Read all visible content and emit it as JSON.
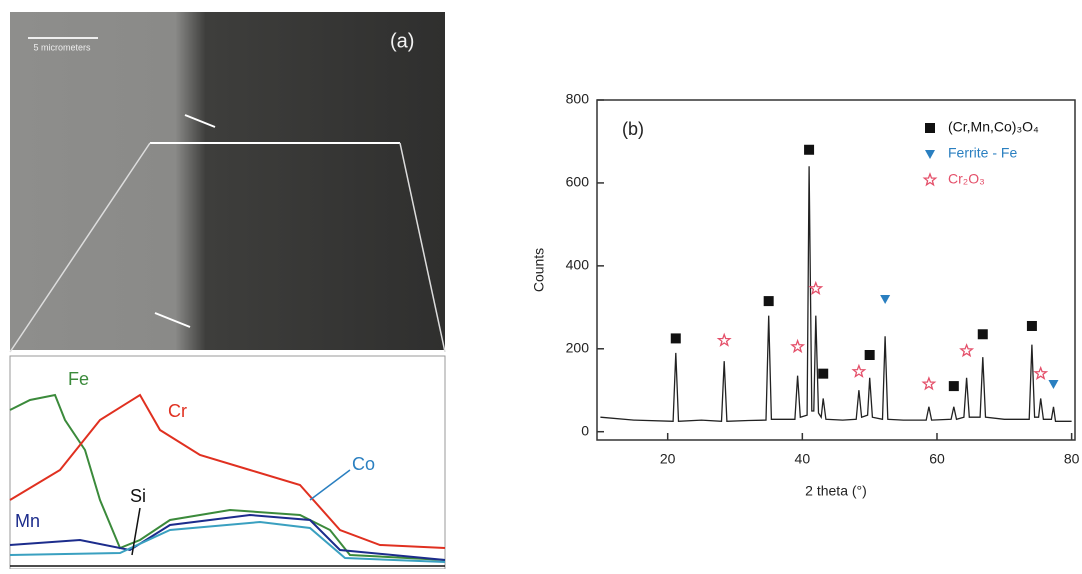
{
  "panel_a": {
    "label": "(a)",
    "scale_bar": "5 micrometers",
    "elements": [
      "Fe",
      "Cr",
      "Co",
      "Mn",
      "Si"
    ]
  },
  "chart_data": {
    "type": "line",
    "annotation": "(b)",
    "xlabel": "2 theta (°)",
    "ylabel": "Counts",
    "x": [
      10,
      15,
      20.8,
      21.2,
      21.6,
      25,
      28.0,
      28.4,
      28.8,
      32,
      34.6,
      35.0,
      35.4,
      38.9,
      39.3,
      39.7,
      40.7,
      41.0,
      41.4,
      41.7,
      42.0,
      42.4,
      42.8,
      43.1,
      43.5,
      46,
      48.0,
      48.4,
      48.8,
      49.7,
      50.0,
      50.4,
      51.9,
      52.3,
      52.7,
      55,
      58.4,
      58.8,
      59.2,
      62.1,
      62.5,
      62.9,
      64.0,
      64.4,
      64.8,
      66.4,
      66.8,
      67.2,
      70,
      73.7,
      74.1,
      74.5,
      75.1,
      75.4,
      75.8,
      77.0,
      77.3,
      77.6,
      80
    ],
    "values": [
      35,
      28,
      25,
      190,
      25,
      28,
      25,
      170,
      25,
      27,
      28,
      280,
      30,
      30,
      135,
      35,
      40,
      640,
      50,
      50,
      280,
      45,
      35,
      80,
      30,
      28,
      30,
      100,
      35,
      40,
      130,
      35,
      30,
      230,
      30,
      28,
      28,
      60,
      28,
      30,
      60,
      30,
      35,
      130,
      35,
      35,
      180,
      35,
      30,
      30,
      210,
      35,
      35,
      80,
      30,
      30,
      60,
      25,
      25
    ],
    "color": "#222222",
    "series": [
      {
        "name": "(Cr,Mn,Co)₃O₄",
        "color": "#111111",
        "marker": "square",
        "x": [
          21.2,
          35.0,
          41.0,
          43.1,
          50.0,
          62.5,
          66.8,
          74.1
        ],
        "values": [
          225,
          315,
          680,
          140,
          185,
          110,
          235,
          255
        ]
      },
      {
        "name": "Ferrite - Fe",
        "color": "#2a7fc0",
        "marker": "triangle",
        "x": [
          52.3,
          77.3
        ],
        "values": [
          320,
          115
        ]
      },
      {
        "name": "Cr₂O₃",
        "color": "#e4506a",
        "marker": "star",
        "x": [
          28.4,
          39.3,
          42.0,
          48.4,
          58.8,
          64.4,
          75.4
        ],
        "values": [
          220,
          205,
          345,
          145,
          115,
          195,
          140
        ]
      }
    ],
    "xlim": [
      9.5,
      80.5
    ],
    "ylim": [
      -20,
      800
    ],
    "xticks": [
      20,
      40,
      60,
      80
    ],
    "yticks": [
      0,
      200,
      400,
      600,
      800
    ]
  }
}
